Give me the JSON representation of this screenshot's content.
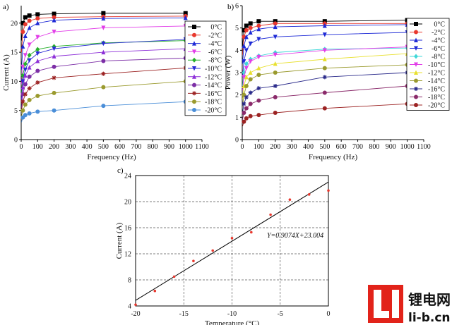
{
  "chart_data": [
    {
      "type": "line",
      "panel": "a)",
      "xlabel": "Frequency (Hz)",
      "ylabel": "Current (A)",
      "xlim": [
        0,
        1100
      ],
      "ylim": [
        0,
        23
      ],
      "xticks": [
        0,
        100,
        200,
        300,
        400,
        500,
        600,
        700,
        800,
        900,
        1000,
        1100
      ],
      "yticks": [
        0,
        5,
        10,
        15,
        20
      ],
      "x": [
        2,
        10,
        25,
        50,
        100,
        200,
        500,
        1000
      ],
      "series": [
        {
          "name": "0°C",
          "color": "#000000",
          "marker": "square",
          "values": [
            17.0,
            20.0,
            21.0,
            21.3,
            21.5,
            21.6,
            21.7,
            21.7
          ]
        },
        {
          "name": "-2°C",
          "color": "#e8382e",
          "marker": "circle",
          "values": [
            15.0,
            18.5,
            19.8,
            20.4,
            20.8,
            21.0,
            21.1,
            21.2
          ]
        },
        {
          "name": "-4°C",
          "color": "#1e2ad6",
          "marker": "triangle",
          "values": [
            12.0,
            16.0,
            17.8,
            19.2,
            20.0,
            20.5,
            20.8,
            20.9
          ]
        },
        {
          "name": "-6°C",
          "color": "#e23ee8",
          "marker": "tridown",
          "values": [
            9.5,
            12.5,
            14.5,
            16.3,
            17.6,
            18.5,
            19.2,
            19.5
          ]
        },
        {
          "name": "-8°C",
          "color": "#25b02a",
          "marker": "diamond",
          "values": [
            8.0,
            11.0,
            13.0,
            14.5,
            15.5,
            16.0,
            16.6,
            17.0
          ]
        },
        {
          "name": "-10°C",
          "color": "#2a2ad6",
          "marker": "tridown",
          "values": [
            7.0,
            10.0,
            12.0,
            13.6,
            14.8,
            15.6,
            16.5,
            17.2
          ]
        },
        {
          "name": "-12°C",
          "color": "#8d2fd8",
          "marker": "triangle",
          "values": [
            6.5,
            9.0,
            11.0,
            12.4,
            13.5,
            14.3,
            15.0,
            15.6
          ]
        },
        {
          "name": "-14°C",
          "color": "#7c2ea6",
          "marker": "circle",
          "values": [
            5.5,
            7.8,
            9.5,
            10.8,
            11.8,
            12.5,
            13.5,
            14.0
          ]
        },
        {
          "name": "-16°C",
          "color": "#9c2323",
          "marker": "star",
          "values": [
            5.0,
            6.5,
            7.8,
            8.8,
            9.8,
            10.6,
            11.3,
            12.3
          ]
        },
        {
          "name": "-18°C",
          "color": "#9a9a2e",
          "marker": "circle",
          "values": [
            4.0,
            5.0,
            6.0,
            6.8,
            7.5,
            8.0,
            9.0,
            10.0
          ]
        },
        {
          "name": "-20°C",
          "color": "#4a8ed8",
          "marker": "circle",
          "values": [
            3.0,
            3.8,
            4.2,
            4.5,
            4.8,
            5.0,
            5.8,
            6.5
          ]
        }
      ]
    },
    {
      "type": "line",
      "panel": "b)",
      "xlabel": "Frequency (Hz)",
      "ylabel": "Power (W)",
      "xlim": [
        0,
        1100
      ],
      "ylim": [
        0,
        6
      ],
      "xticks": [
        0,
        100,
        200,
        300,
        400,
        500,
        600,
        700,
        800,
        900,
        1000,
        1100
      ],
      "yticks": [
        0,
        1,
        2,
        3,
        4,
        5,
        6
      ],
      "x": [
        2,
        10,
        25,
        50,
        100,
        200,
        500,
        1000
      ],
      "series": [
        {
          "name": "0°C",
          "color": "#000000",
          "marker": "square",
          "values": [
            4.2,
            4.9,
            5.1,
            5.2,
            5.3,
            5.3,
            5.3,
            5.35
          ]
        },
        {
          "name": "-2°C",
          "color": "#e8382e",
          "marker": "circle",
          "values": [
            3.8,
            4.6,
            4.9,
            5.0,
            5.1,
            5.2,
            5.2,
            5.2
          ]
        },
        {
          "name": "-4°C",
          "color": "#1e2ad6",
          "marker": "triangle",
          "values": [
            3.4,
            4.2,
            4.6,
            4.8,
            4.95,
            5.05,
            5.1,
            5.15
          ]
        },
        {
          "name": "-6°C",
          "color": "#1e2ad6",
          "marker": "tridown",
          "values": [
            2.8,
            3.5,
            4.0,
            4.3,
            4.5,
            4.6,
            4.7,
            4.8
          ]
        },
        {
          "name": "-8°C",
          "color": "#3fd8d8",
          "marker": "diamond",
          "values": [
            2.4,
            3.0,
            3.4,
            3.6,
            3.75,
            3.9,
            4.05,
            4.1
          ]
        },
        {
          "name": "-10°C",
          "color": "#e23ee8",
          "marker": "tridown",
          "values": [
            2.2,
            2.8,
            3.2,
            3.5,
            3.7,
            3.8,
            4.0,
            4.15
          ]
        },
        {
          "name": "-12°C",
          "color": "#e8e02e",
          "marker": "triangle",
          "values": [
            1.8,
            2.4,
            2.8,
            3.0,
            3.2,
            3.4,
            3.6,
            3.85
          ]
        },
        {
          "name": "-14°C",
          "color": "#9a9a2e",
          "marker": "circle",
          "values": [
            1.5,
            2.0,
            2.4,
            2.7,
            2.9,
            3.0,
            3.2,
            3.35
          ]
        },
        {
          "name": "-16°C",
          "color": "#2a2a8a",
          "marker": "star",
          "values": [
            1.2,
            1.6,
            1.9,
            2.1,
            2.3,
            2.4,
            2.8,
            3.0
          ]
        },
        {
          "name": "-18°C",
          "color": "#8a2a6a",
          "marker": "circle",
          "values": [
            0.9,
            1.2,
            1.4,
            1.6,
            1.75,
            1.9,
            2.1,
            2.4
          ]
        },
        {
          "name": "-20°C",
          "color": "#9c2323",
          "marker": "circle",
          "values": [
            0.6,
            0.8,
            0.95,
            1.05,
            1.1,
            1.2,
            1.4,
            1.6
          ]
        }
      ]
    },
    {
      "type": "scatter",
      "panel": "c)",
      "xlabel": "Temperature (°C)",
      "ylabel": "Current (A)",
      "xlim": [
        -20,
        0
      ],
      "ylim": [
        4,
        24
      ],
      "xticks": [
        -20,
        -15,
        -10,
        -5,
        0
      ],
      "yticks": [
        4,
        8,
        12,
        16,
        20,
        24
      ],
      "grid": true,
      "equation": "Y=0.9074X+23.004",
      "fit": {
        "slope": 0.9074,
        "intercept": 23.004
      },
      "points": {
        "x": [
          -20,
          -18,
          -16,
          -14,
          -12,
          -10,
          -8,
          -6,
          -4,
          -2,
          0
        ],
        "y": [
          4.2,
          6.3,
          8.5,
          10.9,
          12.5,
          14.4,
          15.3,
          18.0,
          20.3,
          21.1,
          21.7
        ]
      },
      "point_color": "#e8382e"
    }
  ],
  "logo": {
    "chinese": "锂电网",
    "latin": "li-b.cn",
    "color": "#e2231a"
  }
}
